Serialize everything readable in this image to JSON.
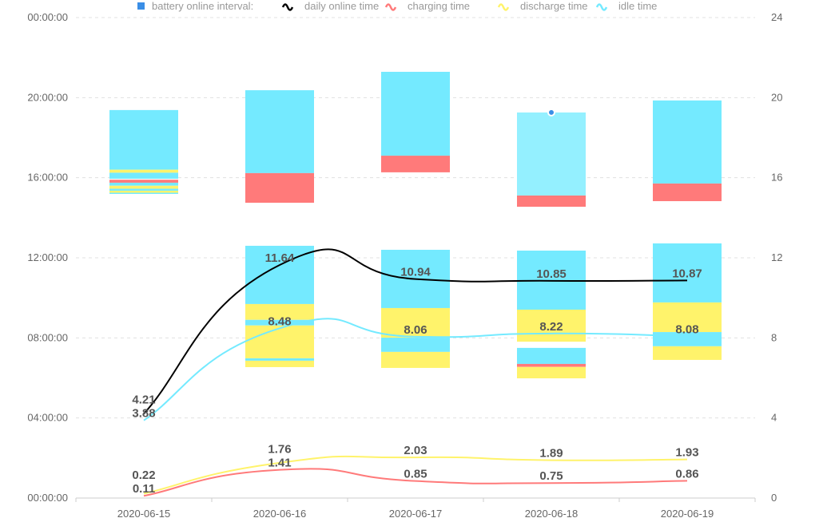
{
  "chart_data": {
    "type": "bar+line",
    "legend": {
      "position": "top",
      "items": [
        {
          "name": "battery online interval:",
          "color": "#3a8ee6",
          "marker": "square"
        },
        {
          "name": "daily online time",
          "color": "#000000",
          "marker": "line"
        },
        {
          "name": "charging time",
          "color": "#ff7a7a",
          "marker": "line"
        },
        {
          "name": "discharge time",
          "color": "#fff36b",
          "marker": "line"
        },
        {
          "name": "idle time",
          "color": "#74eaff",
          "marker": "line"
        }
      ]
    },
    "categories": [
      "2020-06-15",
      "2020-06-16",
      "2020-06-17",
      "2020-06-18",
      "2020-06-19"
    ],
    "left_axis": {
      "ticks": [
        "00:00:00",
        "04:00:00",
        "08:00:00",
        "12:00:00",
        "16:00:00",
        "20:00:00",
        "00:00:00"
      ],
      "range_hours": [
        0,
        24
      ]
    },
    "right_axis": {
      "ticks": [
        "0",
        "4",
        "8",
        "12",
        "16",
        "20",
        "24"
      ],
      "range": [
        0,
        24
      ]
    },
    "colors": {
      "idle": "#74eaff",
      "idle_hover": "#94f0ff",
      "charging": "#ff7a7a",
      "discharge": "#fff36b",
      "daily": "#000000",
      "grid": "#e0e0e0",
      "marker": "#3a8ee6"
    },
    "intervals": [
      [
        [
          "idle",
          16.4,
          19.38
        ],
        [
          "discharge",
          16.25,
          16.4
        ],
        [
          "idle",
          15.95,
          16.25
        ],
        [
          "charging",
          15.75,
          15.9
        ],
        [
          "idle",
          15.6,
          15.75
        ],
        [
          "discharge",
          15.45,
          15.6
        ],
        [
          "idle",
          15.35,
          15.45
        ],
        [
          "discharge",
          15.25,
          15.35
        ],
        [
          "idle",
          15.19,
          15.25
        ]
      ],
      [
        [
          "idle",
          16.23,
          20.37
        ],
        [
          "charging",
          14.75,
          16.23
        ],
        [
          "idle",
          9.69,
          12.6
        ],
        [
          "discharge",
          8.9,
          9.69
        ],
        [
          "idle",
          8.62,
          8.9
        ],
        [
          "discharge",
          6.98,
          8.62
        ],
        [
          "idle",
          6.86,
          6.98
        ],
        [
          "discharge",
          6.54,
          6.86
        ]
      ],
      [
        [
          "idle",
          17.1,
          21.29
        ],
        [
          "charging",
          16.27,
          17.1
        ],
        [
          "idle",
          9.49,
          12.4
        ],
        [
          "discharge",
          8.01,
          9.49
        ],
        [
          "idle",
          7.3,
          8.01
        ],
        [
          "discharge",
          6.5,
          7.3
        ]
      ],
      [
        [
          "idle_hover",
          15.11,
          19.26
        ],
        [
          "charging",
          14.55,
          15.11
        ],
        [
          "idle",
          9.41,
          12.36
        ],
        [
          "discharge",
          7.81,
          9.41
        ],
        [
          "idle",
          6.7,
          7.5
        ],
        [
          "charging",
          6.55,
          6.7
        ],
        [
          "discharge",
          5.98,
          6.55
        ]
      ],
      [
        [
          "idle",
          15.71,
          19.86
        ],
        [
          "charging",
          14.83,
          15.71
        ],
        [
          "idle",
          9.77,
          12.72
        ],
        [
          "discharge",
          8.29,
          9.77
        ],
        [
          "idle",
          7.58,
          8.29
        ],
        [
          "discharge",
          6.9,
          7.58
        ]
      ]
    ],
    "series": [
      {
        "name": "daily online time",
        "key": "daily",
        "values": [
          4.21,
          11.64,
          10.94,
          10.85,
          10.87
        ],
        "labels": [
          "4.21",
          "11.64",
          "10.94",
          "10.85",
          "10.87"
        ]
      },
      {
        "name": "idle time",
        "key": "idle",
        "values": [
          3.88,
          8.48,
          8.06,
          8.22,
          8.08
        ],
        "labels": [
          "3.88",
          "8.48",
          "8.06",
          "8.22",
          "8.08"
        ]
      },
      {
        "name": "discharge time",
        "key": "discharge",
        "values": [
          0.22,
          1.76,
          2.03,
          1.89,
          1.93
        ],
        "labels": [
          "0.22",
          "1.76",
          "2.03",
          "1.89",
          "1.93"
        ]
      },
      {
        "name": "charging time",
        "key": "charging",
        "values": [
          0.11,
          1.41,
          0.85,
          0.75,
          0.86
        ],
        "labels": [
          "0.11",
          "1.41",
          "0.85",
          "0.75",
          "0.86"
        ]
      }
    ],
    "hover_marker": {
      "category": "2020-06-18",
      "hour": 19.26
    }
  }
}
